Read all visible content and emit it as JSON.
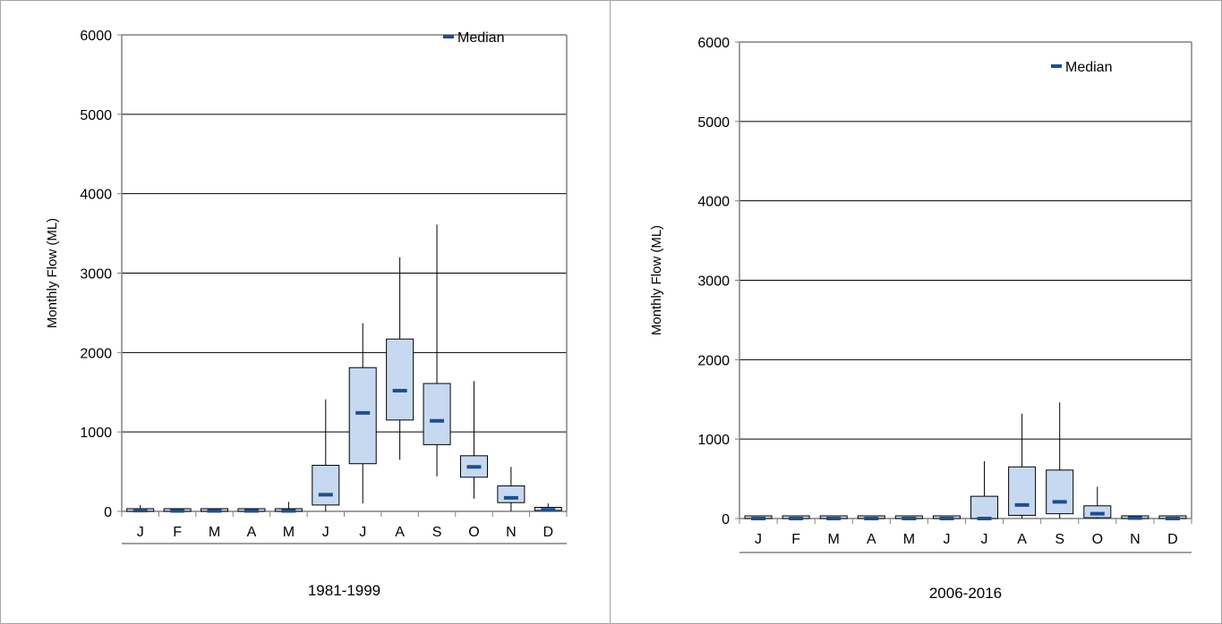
{
  "chart_data": [
    {
      "type": "box",
      "title": "1981-1999",
      "ylabel": "Monthly Flow (ML)",
      "xlabel": "",
      "ylim": [
        0,
        6000
      ],
      "yticks": [
        0,
        1000,
        2000,
        3000,
        4000,
        5000,
        6000
      ],
      "grid": true,
      "legend": {
        "position": "top-right",
        "entries": [
          "Median"
        ]
      },
      "categories": [
        "J",
        "F",
        "M",
        "A",
        "M",
        "J",
        "J",
        "A",
        "S",
        "O",
        "N",
        "D"
      ],
      "series": [
        {
          "name": "Median",
          "min": [
            0,
            0,
            0,
            0,
            0,
            0,
            100,
            650,
            440,
            160,
            0,
            0
          ],
          "q1": [
            0,
            0,
            0,
            0,
            0,
            80,
            600,
            1150,
            840,
            430,
            110,
            10
          ],
          "median": [
            10,
            5,
            5,
            5,
            5,
            210,
            1240,
            1520,
            1140,
            560,
            170,
            20
          ],
          "q3": [
            20,
            10,
            10,
            10,
            20,
            580,
            1810,
            2170,
            1610,
            700,
            320,
            50
          ],
          "max": [
            80,
            20,
            20,
            20,
            120,
            1410,
            2370,
            3200,
            3610,
            1640,
            560,
            100
          ]
        }
      ]
    },
    {
      "type": "box",
      "title": "2006-2016",
      "ylabel": "Monthly Flow (ML)",
      "xlabel": "",
      "ylim": [
        0,
        6000
      ],
      "yticks": [
        0,
        1000,
        2000,
        3000,
        4000,
        5000,
        6000
      ],
      "grid": true,
      "legend": {
        "position": "top-right",
        "entries": [
          "Median"
        ]
      },
      "categories": [
        "J",
        "F",
        "M",
        "A",
        "M",
        "J",
        "J",
        "A",
        "S",
        "O",
        "N",
        "D"
      ],
      "series": [
        {
          "name": "Median",
          "min": [
            0,
            0,
            0,
            0,
            0,
            0,
            0,
            0,
            0,
            0,
            0,
            0
          ],
          "q1": [
            0,
            0,
            0,
            0,
            0,
            0,
            0,
            40,
            60,
            10,
            0,
            0
          ],
          "median": [
            0,
            0,
            0,
            0,
            0,
            0,
            0,
            170,
            210,
            60,
            5,
            0
          ],
          "q3": [
            0,
            0,
            0,
            0,
            0,
            0,
            280,
            650,
            610,
            160,
            10,
            0
          ],
          "max": [
            0,
            0,
            0,
            0,
            0,
            0,
            720,
            1320,
            1460,
            400,
            30,
            0
          ]
        }
      ]
    }
  ],
  "colors": {
    "box_fill": "#c6d9f1",
    "box_stroke": "#000000",
    "median": "#1f4e8c",
    "grid": "#000000",
    "axis": "#808080"
  }
}
